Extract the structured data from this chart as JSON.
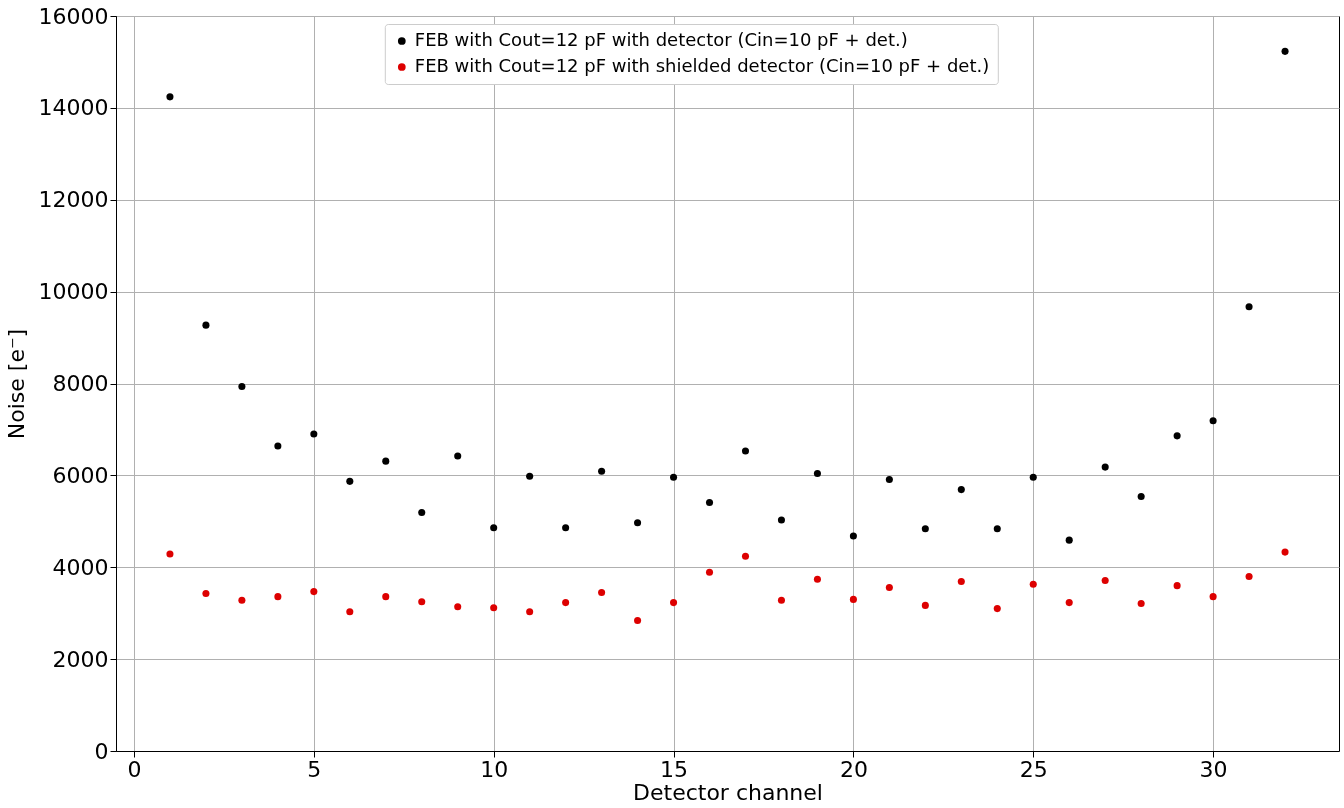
{
  "chart_data": {
    "type": "scatter",
    "xlabel": "Detector channel",
    "ylabel": "Noise [e⁻]",
    "x": [
      1,
      2,
      3,
      4,
      5,
      6,
      7,
      8,
      9,
      10,
      11,
      12,
      13,
      14,
      15,
      16,
      17,
      18,
      19,
      20,
      21,
      22,
      23,
      24,
      25,
      26,
      27,
      28,
      29,
      30,
      31,
      32
    ],
    "series": [
      {
        "name": "FEB with Cout=12 pF with detector (Cin=10 pF + det.)",
        "color": "#000000",
        "values": [
          14240,
          9270,
          7935,
          6640,
          6900,
          5870,
          6310,
          5190,
          6420,
          4860,
          5980,
          4860,
          6090,
          4970,
          5960,
          5410,
          6530,
          5030,
          6040,
          4680,
          5910,
          4840,
          5690,
          4840,
          5960,
          4590,
          6180,
          5540,
          6860,
          7190,
          9670,
          15230
        ]
      },
      {
        "name": "FEB with Cout=12 pF with shielded detector (Cin=10 pF + det.)",
        "color": "#dd0000",
        "values": [
          4290,
          3430,
          3280,
          3360,
          3470,
          3030,
          3360,
          3250,
          3140,
          3120,
          3030,
          3230,
          3450,
          2840,
          3230,
          3890,
          4240,
          3280,
          3740,
          3300,
          3560,
          3170,
          3690,
          3100,
          3630,
          3230,
          3710,
          3210,
          3600,
          3360,
          3800,
          4330
        ]
      }
    ],
    "xlim": [
      -0.5,
      33.5
    ],
    "xticks": [
      0,
      5,
      10,
      15,
      20,
      25,
      30
    ],
    "ylim": [
      0,
      16000
    ],
    "yticks": [
      0,
      2000,
      4000,
      6000,
      8000,
      10000,
      12000,
      14000,
      16000
    ],
    "grid": true,
    "legend": "top",
    "marker": "circle"
  }
}
